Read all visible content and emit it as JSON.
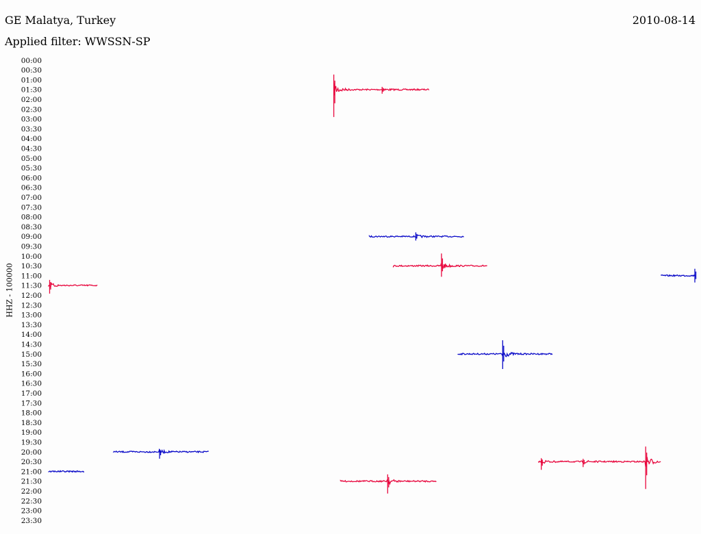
{
  "header": {
    "station": "GE Malatya, Turkey",
    "date": "2010-08-14",
    "filter": "Applied filter: WWSSN-SP"
  },
  "chart_data": {
    "type": "line",
    "title": "GE Malatya, Turkey",
    "subtitle": "Applied filter: WWSSN-SP",
    "date": "2010-08-14",
    "ylabel": "HHZ - 100000",
    "xlabel": "",
    "y_tick_labels": [
      "00:00",
      "00:30",
      "01:00",
      "01:30",
      "02:00",
      "02:30",
      "03:00",
      "03:30",
      "04:00",
      "04:30",
      "05:00",
      "05:30",
      "06:00",
      "06:30",
      "07:00",
      "07:30",
      "08:00",
      "08:30",
      "09:00",
      "09:30",
      "10:00",
      "10:30",
      "11:00",
      "11:30",
      "12:00",
      "12:30",
      "13:00",
      "13:30",
      "14:00",
      "14:30",
      "15:00",
      "15:30",
      "16:00",
      "16:30",
      "17:00",
      "17:30",
      "18:00",
      "18:30",
      "19:00",
      "19:30",
      "20:00",
      "20:30",
      "21:00",
      "21:30",
      "22:00",
      "22:30",
      "23:00",
      "23:30"
    ],
    "x_range_minutes": [
      0,
      30
    ],
    "grid": false,
    "legend": "none",
    "colors": [
      "#e8083e",
      "#0a0ac8"
    ],
    "segments": [
      {
        "row": "01:30",
        "color": "#e8083e",
        "start_min": 13.98,
        "end_min": 18.66,
        "events": [
          {
            "at_min": 13.98,
            "amp_up": 22,
            "amp_down": 40
          },
          {
            "at_min": 16.35,
            "amp_up": 4,
            "amp_down": 6
          }
        ]
      },
      {
        "row": "09:00",
        "color": "#0a0ac8",
        "start_min": 15.72,
        "end_min": 20.38,
        "events": [
          {
            "at_min": 18.0,
            "amp_up": 6,
            "amp_down": 6
          }
        ]
      },
      {
        "row": "10:30",
        "color": "#e8083e",
        "start_min": 16.9,
        "end_min": 21.53,
        "events": [
          {
            "at_min": 19.26,
            "amp_up": 18,
            "amp_down": 16
          }
        ]
      },
      {
        "row": "11:00",
        "color": "#0a0ac8",
        "start_min": 30.03,
        "end_min": 32.26,
        "events": [
          {
            "at_min": 32.22,
            "amp_up": 10,
            "amp_down": 10
          }
        ]
      },
      {
        "row": "11:30",
        "color": "#e8083e",
        "start_min": 0.0,
        "end_min": 2.41,
        "events": [
          {
            "at_min": 0.05,
            "amp_up": 8,
            "amp_down": 12
          }
        ]
      },
      {
        "row": "15:00",
        "color": "#0a0ac8",
        "start_min": 20.06,
        "end_min": 24.71,
        "events": [
          {
            "at_min": 22.26,
            "amp_up": 20,
            "amp_down": 22
          }
        ]
      },
      {
        "row": "20:00",
        "color": "#0a0ac8",
        "start_min": 3.18,
        "end_min": 7.86,
        "events": [
          {
            "at_min": 5.44,
            "amp_up": 4,
            "amp_down": 10
          }
        ]
      },
      {
        "row": "20:30",
        "color": "#e8083e",
        "start_min": 24.0,
        "end_min": 30.01,
        "events": [
          {
            "at_min": 24.15,
            "amp_up": 5,
            "amp_down": 12
          },
          {
            "at_min": 26.2,
            "amp_up": 4,
            "amp_down": 8
          },
          {
            "at_min": 29.27,
            "amp_up": 22,
            "amp_down": 40
          }
        ]
      },
      {
        "row": "21:00",
        "color": "#0a0ac8",
        "start_min": 0.0,
        "end_min": 1.75,
        "events": []
      },
      {
        "row": "21:30",
        "color": "#e8083e",
        "start_min": 14.31,
        "end_min": 19.03,
        "events": [
          {
            "at_min": 16.62,
            "amp_up": 10,
            "amp_down": 18
          }
        ]
      }
    ]
  }
}
